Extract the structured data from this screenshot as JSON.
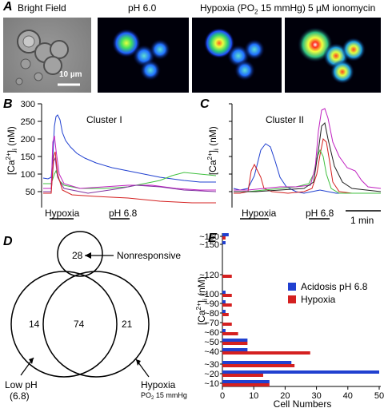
{
  "panel_a": {
    "letter": "A",
    "captions": [
      "Bright Field",
      "pH 6.0",
      "Hypoxia (PO",
      "2",
      " 15 mmHg)",
      "5 µM ionomycin"
    ],
    "scale_bar": "10 µm"
  },
  "panel_b": {
    "letter": "B",
    "title": "Cluster I",
    "ylabel_main": "[Ca",
    "ylabel_sup": "2+",
    "ylabel_sub": "i",
    "ylabel_unit": " (nM)",
    "yticks": [
      "300",
      "250",
      "200",
      "150",
      "100",
      "50"
    ],
    "stim1": "Hypoxia",
    "stim2": "pH 6.8"
  },
  "panel_c": {
    "letter": "C",
    "title": "Cluster II",
    "stim1": "Hypoxia",
    "stim2": "pH 6.8",
    "time_bar": "1 min"
  },
  "panel_d": {
    "letter": "D",
    "nonresponsive_count": "28",
    "nonresponsive_label": "Nonresponsive",
    "left_only": "14",
    "overlap": "74",
    "right_only": "21",
    "left_label_1": "Low pH",
    "left_label_2": "(6.8)",
    "right_label_1": "Hypoxia",
    "right_label_2a": "PO",
    "right_label_2b": "2",
    "right_label_2c": " 15 mmHg"
  },
  "panel_e": {
    "letter": "E",
    "ylabel": "[Ca2+]i (nM)",
    "xlabel": "Cell Numbers",
    "legend": [
      "Acidosis pH 6.8",
      "Hypoxia"
    ],
    "colors": {
      "acidosis": "#2040d0",
      "hypoxia": "#d42020"
    }
  },
  "chart_data": [
    {
      "type": "bar",
      "panel": "E",
      "orientation": "horizontal",
      "categories": [
        "~160",
        "~150",
        "~120",
        "~100",
        "~90",
        "~80",
        "~70",
        "~60",
        "~50",
        "~40",
        "~30",
        "~20",
        "~10"
      ],
      "series": [
        {
          "name": "Acidosis pH 6.8",
          "values": [
            2,
            1,
            0,
            1,
            1,
            1,
            0,
            1,
            8,
            8,
            22,
            50,
            15
          ]
        },
        {
          "name": "Hypoxia",
          "values": [
            1,
            0,
            3,
            3,
            3,
            2,
            3,
            5,
            8,
            28,
            23,
            13,
            15
          ]
        }
      ],
      "xlabel": "Cell Numbers",
      "ylabel": "[Ca2+]i (nM)",
      "xlim": [
        0,
        50
      ],
      "xticks": [
        "0",
        "10",
        "20",
        "30",
        "40",
        "50"
      ],
      "legend": "right"
    }
  ]
}
